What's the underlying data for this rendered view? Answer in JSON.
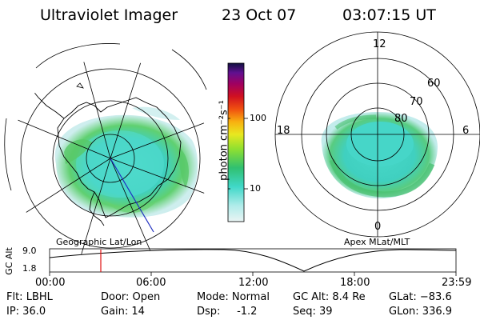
{
  "header": {
    "instrument": "Ultraviolet Imager",
    "date": "23 Oct 07",
    "time": "03:07:15 UT"
  },
  "left_panel": {
    "label": "Geographic Lat/Lon"
  },
  "right_panel": {
    "label": "Apex MLat/MLT",
    "mlt_labels": [
      "12",
      "18",
      "6",
      "0"
    ],
    "lat_labels": [
      "60",
      "70",
      "80"
    ]
  },
  "colorbar": {
    "unit_label": "photon cm⁻²s⁻¹",
    "ticks": [
      "100",
      "10"
    ],
    "scale": "log",
    "colors": [
      "#e8f0f0",
      "#40d8c8",
      "#30c070",
      "#90e030",
      "#e8e820",
      "#f8b010",
      "#f05010",
      "#d01020",
      "#a00060",
      "#601090",
      "#101040"
    ]
  },
  "altitude_strip": {
    "ylabel": "GC Alt",
    "ymax": "9.0",
    "ymin": "1.8",
    "time_ticks": [
      "00:00",
      "06:00",
      "12:00",
      "18:00",
      "23:59"
    ],
    "current_marker_hour": 3.12
  },
  "footer": {
    "filter": "Flt: LBHL",
    "ip": "IP: 36.0",
    "door": "Door: Open",
    "gain": "Gain: 14",
    "mode": "Mode: Normal",
    "dsp": "Dsp:     -1.2",
    "gc_alt": "GC Alt: 8.4 Re",
    "seq": "Seq: 39",
    "glat": "GLat: −83.6",
    "glon": "GLon: 336.9"
  }
}
